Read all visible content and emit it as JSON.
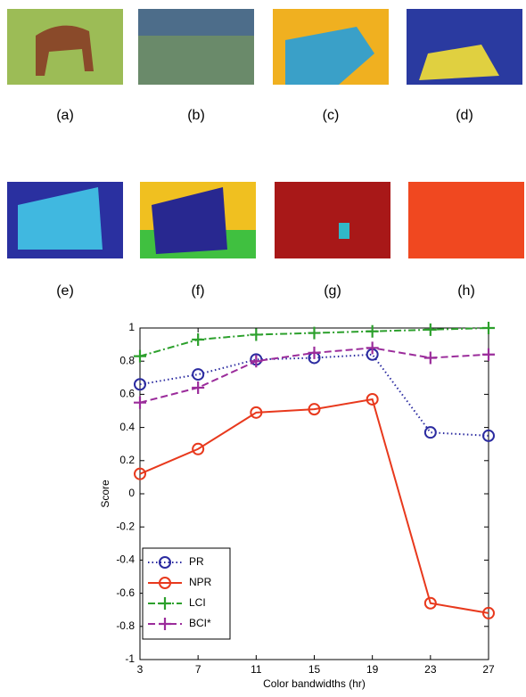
{
  "panels": [
    {
      "label": "(a)"
    },
    {
      "label": "(b)"
    },
    {
      "label": "(c)"
    },
    {
      "label": "(d)"
    },
    {
      "label": "(e)"
    },
    {
      "label": "(f)"
    },
    {
      "label": "(g)"
    },
    {
      "label": "(h)"
    }
  ],
  "chart_data": {
    "type": "line",
    "xlabel": "Color bandwidths (hr)",
    "ylabel": "Score",
    "x": [
      3,
      7,
      11,
      15,
      19,
      23,
      27
    ],
    "xlim": [
      3,
      27
    ],
    "xticks": [
      3,
      7,
      11,
      15,
      19,
      23,
      27
    ],
    "ylim": [
      -1,
      1
    ],
    "yticks": [
      -1,
      -0.8,
      -0.6,
      -0.4,
      -0.2,
      0,
      0.2,
      0.4,
      0.6,
      0.8,
      1
    ],
    "legend": "lower left",
    "series": [
      {
        "name": "PR",
        "color": "#2b2ba0",
        "linestyle": "dotted",
        "marker": "circle",
        "values": [
          0.66,
          0.72,
          0.81,
          0.82,
          0.84,
          0.37,
          0.35
        ]
      },
      {
        "name": "NPR",
        "color": "#e8391d",
        "linestyle": "solid",
        "marker": "circle",
        "values": [
          0.12,
          0.27,
          0.49,
          0.51,
          0.57,
          -0.66,
          -0.72
        ]
      },
      {
        "name": "LCI",
        "color": "#2ca02c",
        "linestyle": "dashdot",
        "marker": "plus",
        "values": [
          0.83,
          0.93,
          0.96,
          0.97,
          0.98,
          0.99,
          1.0
        ]
      },
      {
        "name": "BCI*",
        "color": "#9b2c9b",
        "linestyle": "dashed",
        "marker": "plus",
        "values": [
          0.55,
          0.64,
          0.8,
          0.85,
          0.88,
          0.82,
          0.84
        ]
      }
    ]
  }
}
